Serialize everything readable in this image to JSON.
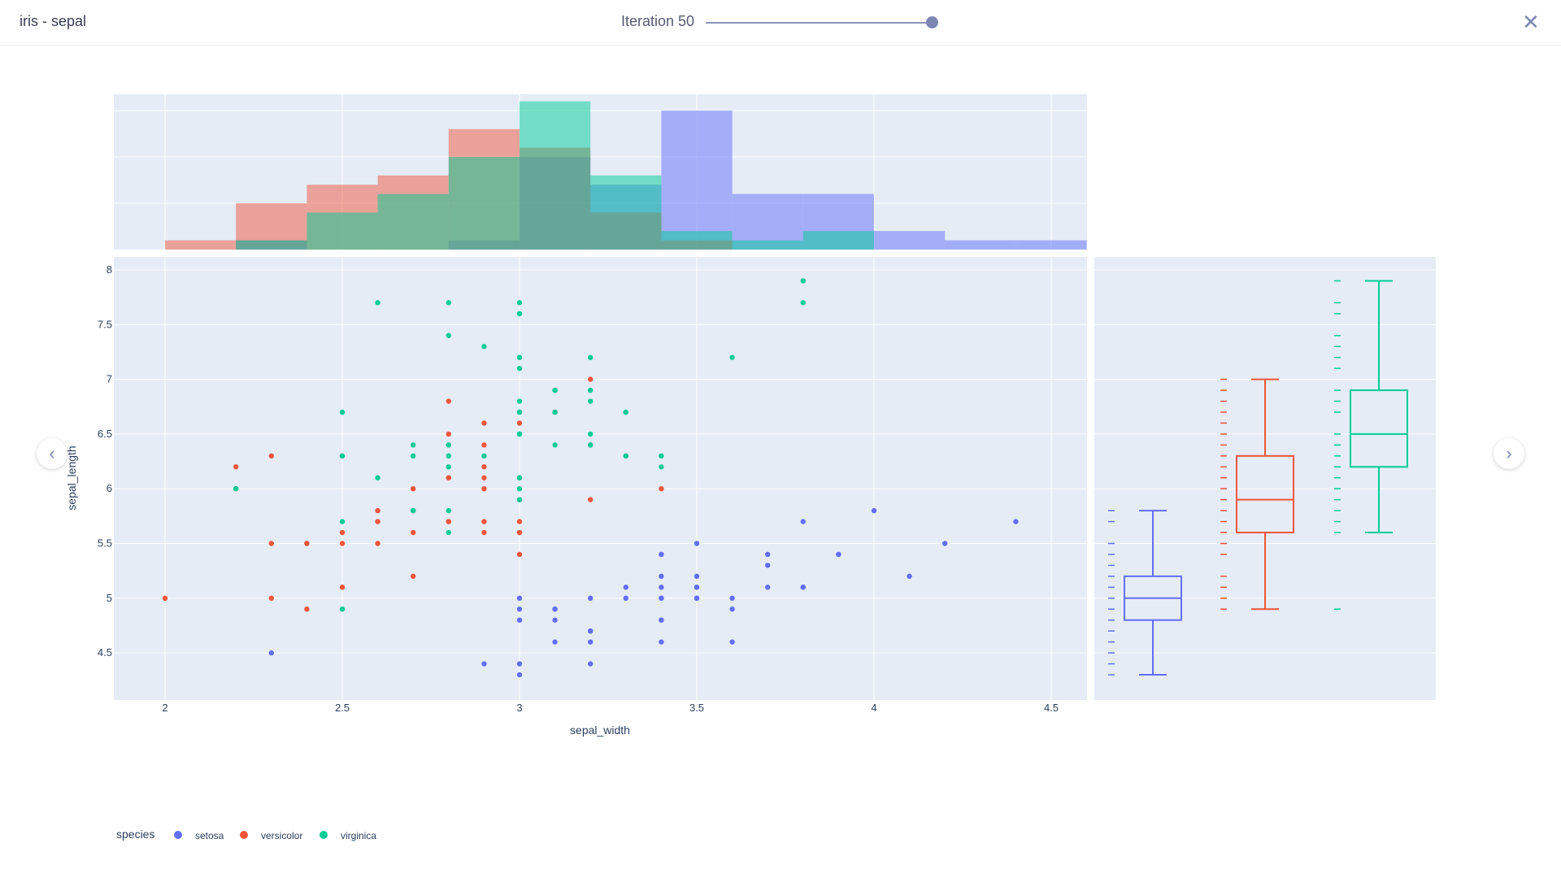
{
  "header": {
    "title": "iris - sepal",
    "iteration_label": "Iteration 50",
    "iteration_value": 50,
    "iteration_fraction": 1.0,
    "close_icon": "close-icon"
  },
  "nav": {
    "prev_icon": "chevron-left-icon",
    "next_icon": "chevron-right-icon",
    "prev": "‹",
    "next": "›",
    "close": "✕"
  },
  "colors": {
    "setosa": "#636efa",
    "versicolor": "#EF553B",
    "virginica": "#00cc96",
    "plot_bg": "#e5ecf6"
  },
  "chart_data": {
    "type": "scatter",
    "subtypes": {
      "top": "histogram (overlay)",
      "right": "box with rug"
    },
    "xlabel": "sepal_width",
    "ylabel": "sepal_length",
    "xlim": [
      1.85,
      4.6
    ],
    "ylim": [
      4.15,
      8.1
    ],
    "xticks": [
      "2",
      "2.5",
      "3",
      "3.5",
      "4",
      "4.5"
    ],
    "yticks": [
      "4.5",
      "5",
      "5.5",
      "6",
      "6.5",
      "7",
      "7.5",
      "8"
    ],
    "grid": true,
    "legend": {
      "title": "species",
      "position": "bottom-left",
      "entries": [
        "setosa",
        "versicolor",
        "virginica"
      ]
    },
    "series": [
      {
        "name": "setosa",
        "points": [
          [
            3.5,
            5.1
          ],
          [
            3.0,
            4.9
          ],
          [
            3.2,
            4.7
          ],
          [
            3.1,
            4.6
          ],
          [
            3.6,
            5.0
          ],
          [
            3.9,
            5.4
          ],
          [
            3.4,
            4.6
          ],
          [
            3.4,
            5.0
          ],
          [
            2.9,
            4.4
          ],
          [
            3.1,
            4.9
          ],
          [
            3.7,
            5.4
          ],
          [
            3.4,
            4.8
          ],
          [
            3.0,
            4.8
          ],
          [
            3.0,
            4.3
          ],
          [
            4.0,
            5.8
          ],
          [
            4.4,
            5.7
          ],
          [
            3.9,
            5.4
          ],
          [
            3.5,
            5.1
          ],
          [
            3.8,
            5.7
          ],
          [
            3.8,
            5.1
          ],
          [
            3.4,
            5.4
          ],
          [
            3.7,
            5.1
          ],
          [
            3.6,
            4.6
          ],
          [
            3.3,
            5.1
          ],
          [
            3.4,
            4.8
          ],
          [
            3.0,
            5.0
          ],
          [
            3.4,
            5.0
          ],
          [
            3.5,
            5.2
          ],
          [
            3.4,
            5.2
          ],
          [
            3.2,
            4.7
          ],
          [
            3.1,
            4.8
          ],
          [
            3.4,
            5.4
          ],
          [
            4.1,
            5.2
          ],
          [
            4.2,
            5.5
          ],
          [
            3.1,
            4.9
          ],
          [
            3.2,
            5.0
          ],
          [
            3.5,
            5.5
          ],
          [
            3.6,
            4.9
          ],
          [
            3.0,
            4.4
          ],
          [
            3.4,
            5.1
          ],
          [
            3.5,
            5.0
          ],
          [
            2.3,
            4.5
          ],
          [
            3.2,
            4.4
          ],
          [
            3.5,
            5.0
          ],
          [
            3.8,
            5.1
          ],
          [
            3.0,
            4.8
          ],
          [
            3.8,
            5.1
          ],
          [
            3.2,
            4.6
          ],
          [
            3.7,
            5.3
          ],
          [
            3.3,
            5.0
          ]
        ],
        "box": {
          "min": 4.3,
          "q1": 4.8,
          "median": 5.0,
          "q3": 5.2,
          "max": 5.8,
          "outliers": []
        }
      },
      {
        "name": "versicolor",
        "points": [
          [
            3.2,
            7.0
          ],
          [
            3.2,
            6.4
          ],
          [
            3.1,
            6.9
          ],
          [
            2.3,
            5.5
          ],
          [
            2.8,
            6.5
          ],
          [
            2.8,
            5.7
          ],
          [
            3.3,
            6.3
          ],
          [
            2.4,
            4.9
          ],
          [
            2.9,
            6.6
          ],
          [
            2.7,
            5.2
          ],
          [
            2.0,
            5.0
          ],
          [
            3.0,
            5.9
          ],
          [
            2.2,
            6.0
          ],
          [
            2.9,
            6.1
          ],
          [
            2.9,
            5.6
          ],
          [
            3.1,
            6.7
          ],
          [
            3.0,
            5.6
          ],
          [
            2.7,
            5.8
          ],
          [
            2.2,
            6.2
          ],
          [
            2.5,
            5.6
          ],
          [
            3.2,
            5.9
          ],
          [
            2.8,
            6.1
          ],
          [
            2.5,
            6.3
          ],
          [
            2.8,
            6.1
          ],
          [
            2.9,
            6.4
          ],
          [
            3.0,
            6.6
          ],
          [
            2.8,
            6.8
          ],
          [
            3.0,
            6.7
          ],
          [
            2.9,
            6.0
          ],
          [
            2.6,
            5.7
          ],
          [
            2.4,
            5.5
          ],
          [
            2.4,
            5.5
          ],
          [
            2.7,
            5.8
          ],
          [
            2.7,
            6.0
          ],
          [
            3.0,
            5.4
          ],
          [
            3.4,
            6.0
          ],
          [
            3.1,
            6.7
          ],
          [
            2.3,
            6.3
          ],
          [
            3.0,
            5.6
          ],
          [
            2.5,
            5.5
          ],
          [
            2.6,
            5.5
          ],
          [
            3.0,
            6.1
          ],
          [
            2.6,
            5.8
          ],
          [
            2.3,
            5.0
          ],
          [
            2.7,
            5.6
          ],
          [
            3.0,
            5.7
          ],
          [
            2.9,
            5.7
          ],
          [
            2.9,
            6.2
          ],
          [
            2.5,
            5.1
          ],
          [
            2.8,
            5.7
          ]
        ],
        "box": {
          "min": 4.9,
          "q1": 5.6,
          "median": 5.9,
          "q3": 6.3,
          "max": 7.0,
          "outliers": []
        }
      },
      {
        "name": "virginica",
        "points": [
          [
            3.3,
            6.3
          ],
          [
            2.7,
            5.8
          ],
          [
            3.0,
            7.1
          ],
          [
            2.9,
            6.3
          ],
          [
            3.0,
            6.5
          ],
          [
            3.0,
            7.6
          ],
          [
            2.5,
            4.9
          ],
          [
            2.9,
            7.3
          ],
          [
            2.5,
            6.7
          ],
          [
            3.6,
            7.2
          ],
          [
            3.2,
            6.5
          ],
          [
            2.7,
            6.4
          ],
          [
            3.0,
            6.8
          ],
          [
            2.5,
            5.7
          ],
          [
            2.8,
            5.8
          ],
          [
            3.2,
            6.4
          ],
          [
            3.0,
            6.5
          ],
          [
            3.8,
            7.7
          ],
          [
            2.6,
            7.7
          ],
          [
            2.2,
            6.0
          ],
          [
            3.2,
            6.9
          ],
          [
            2.8,
            5.6
          ],
          [
            2.8,
            7.7
          ],
          [
            2.7,
            6.3
          ],
          [
            3.3,
            6.7
          ],
          [
            3.2,
            7.2
          ],
          [
            2.8,
            6.2
          ],
          [
            3.0,
            6.1
          ],
          [
            2.8,
            6.4
          ],
          [
            3.0,
            7.2
          ],
          [
            2.8,
            7.4
          ],
          [
            3.8,
            7.9
          ],
          [
            2.8,
            6.4
          ],
          [
            2.8,
            6.3
          ],
          [
            2.6,
            6.1
          ],
          [
            3.0,
            7.7
          ],
          [
            3.4,
            6.3
          ],
          [
            3.1,
            6.4
          ],
          [
            3.0,
            6.0
          ],
          [
            3.1,
            6.9
          ],
          [
            3.1,
            6.7
          ],
          [
            3.1,
            6.9
          ],
          [
            2.7,
            5.8
          ],
          [
            3.2,
            6.8
          ],
          [
            3.3,
            6.7
          ],
          [
            3.0,
            6.7
          ],
          [
            2.5,
            6.3
          ],
          [
            3.0,
            6.5
          ],
          [
            3.4,
            6.2
          ],
          [
            3.0,
            5.9
          ]
        ],
        "box": {
          "min": 5.6,
          "q1": 6.2,
          "median": 6.5,
          "q3": 6.9,
          "max": 7.9,
          "outliers": [
            4.9
          ]
        }
      }
    ]
  }
}
